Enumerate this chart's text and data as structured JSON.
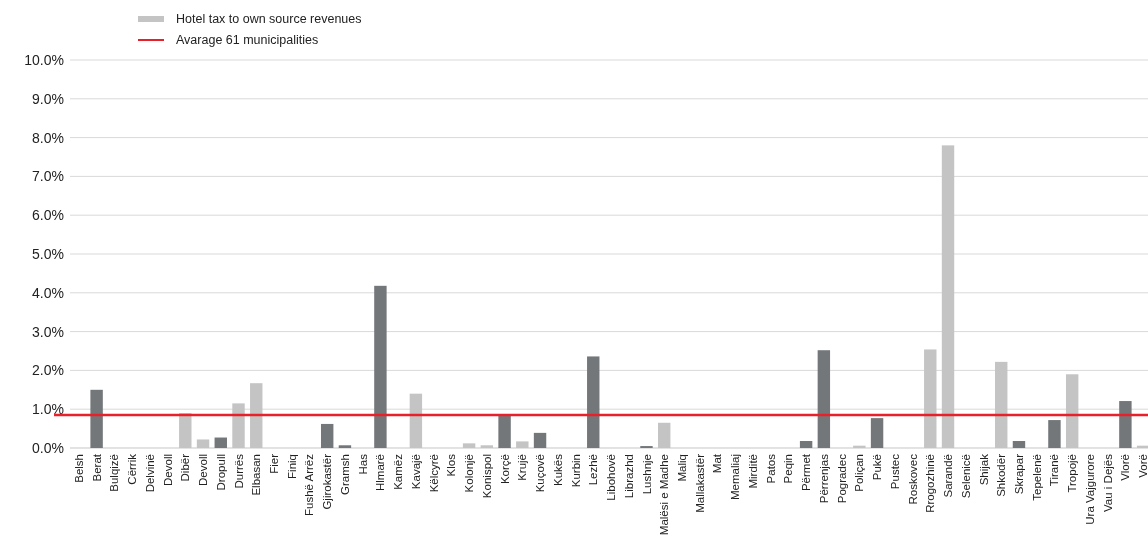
{
  "chart_data": {
    "type": "bar",
    "categories": [
      "Belsh",
      "Berat",
      "Bulqizë",
      "Cërrik",
      "Delvinë",
      "Devoll",
      "Dibër",
      "Devoll",
      "Dropull",
      "Durrës",
      "Elbasan",
      "Fier",
      "Finiq",
      "Fushë Arrëz",
      "Gjirokastër",
      "Gramsh",
      "Has",
      "Hlmarë",
      "Kamëz",
      "Kavajë",
      "Këlcyrë",
      "Klos",
      "Kolonjë",
      "Konispol",
      "Korçë",
      "Krujë",
      "Kuçovë",
      "Kukës",
      "Kurbin",
      "Lezhë",
      "Libohovë",
      "Librazhd",
      "Lushnje",
      "Malësi e Madhe",
      "Maliq",
      "Mallakastër",
      "Mat",
      "Memaliaj",
      "Mirditë",
      "Patos",
      "Peqin",
      "Përmet",
      "Përrenjas",
      "Pogradec",
      "Poliçan",
      "Pukë",
      "Pustec",
      "Roskovec",
      "Rrogozhinë",
      "Sarandë",
      "Selenicë",
      "Shijak",
      "Shkodër",
      "Skrapar",
      "Tepelenë",
      "Tiranë",
      "Tropojë",
      "Ura Vajgurore",
      "Vau i Dejës",
      "Vlorë",
      "Vorë"
    ],
    "series": [
      {
        "name": "Hotel tax to own source revenues",
        "color": "#c3c4c3",
        "values": [
          0,
          1.5,
          0,
          0,
          0,
          0,
          0.9,
          0.22,
          0.27,
          1.15,
          1.67,
          0,
          0,
          0,
          0.62,
          0.07,
          0,
          4.18,
          0,
          1.4,
          0,
          0,
          0.12,
          0.07,
          0.86,
          0.17,
          0.39,
          0,
          0,
          2.36,
          0,
          0,
          0.05,
          0.65,
          0,
          0,
          0,
          0,
          0,
          0,
          0,
          0.18,
          2.52,
          0,
          0.06,
          0.77,
          0,
          0,
          2.54,
          7.8,
          0,
          0,
          2.22,
          0.18,
          0,
          0.72,
          1.9,
          0,
          0,
          1.21,
          0.06
        ],
        "colors": [
          "#c3c4c3",
          "#73777a",
          "#c3c4c3",
          "#c3c4c3",
          "#c3c4c3",
          "#c3c4c3",
          "#c3c4c3",
          "#c3c4c3",
          "#73777a",
          "#c3c4c3",
          "#c3c4c3",
          "#c3c4c3",
          "#c3c4c3",
          "#c3c4c3",
          "#73777a",
          "#73777a",
          "#c3c4c3",
          "#73777a",
          "#c3c4c3",
          "#c3c4c3",
          "#c3c4c3",
          "#c3c4c3",
          "#c3c4c3",
          "#c3c4c3",
          "#73777a",
          "#c3c4c3",
          "#73777a",
          "#c3c4c3",
          "#c3c4c3",
          "#73777a",
          "#c3c4c3",
          "#c3c4c3",
          "#73777a",
          "#c3c4c3",
          "#c3c4c3",
          "#c3c4c3",
          "#c3c4c3",
          "#c3c4c3",
          "#c3c4c3",
          "#c3c4c3",
          "#c3c4c3",
          "#73777a",
          "#73777a",
          "#c3c4c3",
          "#c3c4c3",
          "#73777a",
          "#c3c4c3",
          "#c3c4c3",
          "#c3c4c3",
          "#c3c4c3",
          "#c3c4c3",
          "#c3c4c3",
          "#c3c4c3",
          "#73777a",
          "#c3c4c3",
          "#73777a",
          "#c3c4c3",
          "#c3c4c3",
          "#c3c4c3",
          "#73777a",
          "#c3c4c3"
        ]
      }
    ],
    "ylim": [
      0,
      10
    ],
    "yticks": [
      {
        "value": 0,
        "label": "0.0%"
      },
      {
        "value": 1,
        "label": "1.0%"
      },
      {
        "value": 2,
        "label": "2.0%"
      },
      {
        "value": 3,
        "label": "3.0%"
      },
      {
        "value": 4,
        "label": "4.0%"
      },
      {
        "value": 5,
        "label": "5.0%"
      },
      {
        "value": 6,
        "label": "6.0%"
      },
      {
        "value": 7,
        "label": "7.0%"
      },
      {
        "value": 8,
        "label": "8.0%"
      },
      {
        "value": 9,
        "label": "9.0%"
      },
      {
        "value": 10,
        "label": "10.0%"
      }
    ],
    "grid": "y",
    "legend": "top left",
    "ref_lines": [
      {
        "axis": "y",
        "value": 0.85,
        "label": "Avarage 61 municipalities",
        "color": "#e8202a"
      }
    ]
  }
}
